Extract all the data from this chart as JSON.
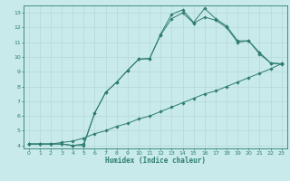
{
  "background_color": "#c8eaea",
  "grid_color": "#d0e8e8",
  "line_color": "#2e7d6e",
  "xlabel": "Humidex (Indice chaleur)",
  "xlim": [
    -0.5,
    23.5
  ],
  "ylim": [
    3.8,
    13.5
  ],
  "xticks": [
    0,
    1,
    2,
    3,
    4,
    5,
    6,
    7,
    8,
    9,
    10,
    11,
    12,
    13,
    14,
    15,
    16,
    17,
    18,
    19,
    20,
    21,
    22,
    23
  ],
  "yticks": [
    4,
    5,
    6,
    7,
    8,
    9,
    10,
    11,
    12,
    13
  ],
  "line1_x": [
    0,
    1,
    2,
    3,
    4,
    5,
    6,
    7,
    8,
    9,
    10,
    11,
    12,
    13,
    14,
    15,
    16,
    17,
    18,
    19,
    20,
    21,
    22,
    23
  ],
  "line1_y": [
    4.1,
    4.1,
    4.1,
    4.1,
    4.0,
    4.0,
    6.2,
    7.6,
    8.3,
    9.1,
    9.85,
    9.9,
    11.55,
    12.9,
    13.2,
    12.35,
    13.3,
    12.6,
    12.1,
    11.1,
    11.1,
    10.3,
    9.6,
    9.55
  ],
  "line2_x": [
    0,
    1,
    2,
    3,
    4,
    5,
    6,
    7,
    8,
    9,
    10,
    11,
    12,
    13,
    14,
    15,
    16,
    17,
    18,
    19,
    20,
    21,
    22,
    23
  ],
  "line2_y": [
    4.1,
    4.1,
    4.1,
    4.1,
    4.0,
    4.1,
    6.2,
    7.6,
    8.3,
    9.1,
    9.85,
    9.9,
    11.5,
    12.6,
    13.0,
    12.3,
    12.7,
    12.5,
    12.0,
    11.0,
    11.1,
    10.2,
    9.6,
    9.5
  ],
  "line3_x": [
    0,
    1,
    2,
    3,
    4,
    5,
    6,
    7,
    8,
    9,
    10,
    11,
    12,
    13,
    14,
    15,
    16,
    17,
    18,
    19,
    20,
    21,
    22,
    23
  ],
  "line3_y": [
    4.1,
    4.1,
    4.1,
    4.2,
    4.3,
    4.5,
    4.8,
    5.0,
    5.3,
    5.5,
    5.8,
    6.0,
    6.3,
    6.6,
    6.9,
    7.2,
    7.5,
    7.7,
    8.0,
    8.3,
    8.6,
    8.9,
    9.2,
    9.55
  ]
}
